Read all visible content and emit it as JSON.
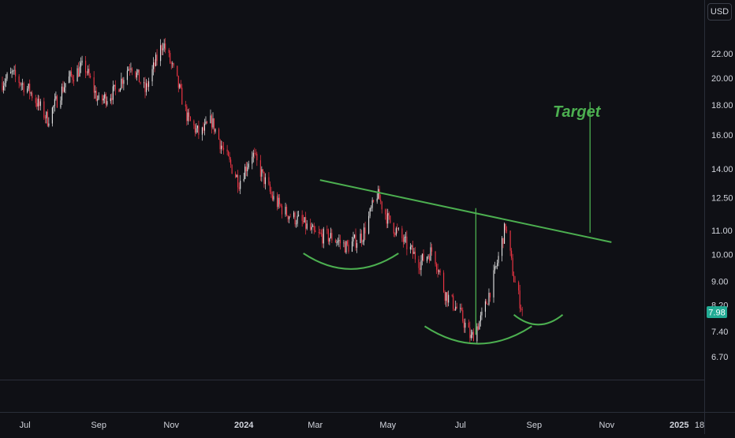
{
  "currency": "USD",
  "last_price_label": "7.98",
  "annotations": {
    "target_label": "Target"
  },
  "colors": {
    "background": "#0f1015",
    "up": "#e8e8e8",
    "down": "#f23645",
    "drawing": "#4caf50",
    "last_price_tag": "#22ab94",
    "axis_text": "#d1d4dc",
    "divider": "#2a2e39"
  },
  "chart_data": {
    "type": "candlestick",
    "title": "",
    "xlabel": "",
    "ylabel": "",
    "y_scale": "log",
    "ylim": [
      6.2,
      24.0
    ],
    "xlim": [
      "2023-06-10",
      "2025-01-22"
    ],
    "y_ticks": [
      22.0,
      20.0,
      18.0,
      16.0,
      14.0,
      12.5,
      11.0,
      10.0,
      9.0,
      8.2,
      7.4,
      6.7
    ],
    "y_tick_labels": [
      "22.00",
      "20.00",
      "18.00",
      "16.00",
      "14.00",
      "12.50",
      "11.00",
      "10.00",
      "9.00",
      "8.20",
      "7.40",
      "6.70"
    ],
    "x_ticks": [
      {
        "date": "2023-07-01",
        "label": "Jul"
      },
      {
        "date": "2023-09-01",
        "label": "Sep"
      },
      {
        "date": "2023-11-01",
        "label": "Nov"
      },
      {
        "date": "2024-01-01",
        "label": "2024"
      },
      {
        "date": "2024-03-01",
        "label": "Mar"
      },
      {
        "date": "2024-05-01",
        "label": "May"
      },
      {
        "date": "2024-07-01",
        "label": "Jul"
      },
      {
        "date": "2024-09-01",
        "label": "Sep"
      },
      {
        "date": "2024-11-01",
        "label": "Nov"
      },
      {
        "date": "2025-01-01",
        "label": "2025"
      },
      {
        "date": "2025-01-18",
        "label": "18"
      }
    ],
    "last_price": 7.98,
    "price_path": [
      {
        "date": "2023-06-10",
        "close": 19.5
      },
      {
        "date": "2023-06-20",
        "close": 20.3
      },
      {
        "date": "2023-07-05",
        "close": 19.0
      },
      {
        "date": "2023-07-20",
        "close": 17.0
      },
      {
        "date": "2023-08-05",
        "close": 19.8
      },
      {
        "date": "2023-08-20",
        "close": 21.0
      },
      {
        "date": "2023-09-01",
        "close": 18.2
      },
      {
        "date": "2023-09-15",
        "close": 19.0
      },
      {
        "date": "2023-09-28",
        "close": 21.2
      },
      {
        "date": "2023-10-10",
        "close": 19.0
      },
      {
        "date": "2023-10-25",
        "close": 23.0
      },
      {
        "date": "2023-11-05",
        "close": 20.0
      },
      {
        "date": "2023-11-15",
        "close": 17.0
      },
      {
        "date": "2023-11-25",
        "close": 16.0
      },
      {
        "date": "2023-12-05",
        "close": 16.9
      },
      {
        "date": "2023-12-15",
        "close": 15.0
      },
      {
        "date": "2023-12-28",
        "close": 13.3
      },
      {
        "date": "2024-01-08",
        "close": 14.9
      },
      {
        "date": "2024-01-25",
        "close": 12.5
      },
      {
        "date": "2024-02-05",
        "close": 11.8
      },
      {
        "date": "2024-02-20",
        "close": 11.3
      },
      {
        "date": "2024-03-01",
        "close": 10.8
      },
      {
        "date": "2024-03-15",
        "close": 10.7
      },
      {
        "date": "2024-03-28",
        "close": 10.3
      },
      {
        "date": "2024-04-10",
        "close": 10.8
      },
      {
        "date": "2024-04-22",
        "close": 12.7
      },
      {
        "date": "2024-05-01",
        "close": 11.5
      },
      {
        "date": "2024-05-15",
        "close": 10.5
      },
      {
        "date": "2024-05-28",
        "close": 9.7
      },
      {
        "date": "2024-06-08",
        "close": 10.2
      },
      {
        "date": "2024-06-18",
        "close": 8.6
      },
      {
        "date": "2024-06-30",
        "close": 8.0
      },
      {
        "date": "2024-07-10",
        "close": 7.2
      },
      {
        "date": "2024-07-20",
        "close": 7.9
      },
      {
        "date": "2024-07-30",
        "close": 9.3
      },
      {
        "date": "2024-08-08",
        "close": 11.2
      },
      {
        "date": "2024-08-15",
        "close": 9.1
      },
      {
        "date": "2024-08-23",
        "close": 7.9
      }
    ],
    "drawings": [
      {
        "name": "neckline",
        "type": "trendline",
        "points": [
          {
            "date": "2024-03-05",
            "price": 13.4
          },
          {
            "date": "2024-11-05",
            "price": 10.5
          }
        ]
      },
      {
        "name": "head-depth",
        "type": "vertical",
        "date": "2024-07-14",
        "price_from": 7.3,
        "price_to": 12.0
      },
      {
        "name": "target-measure",
        "type": "vertical",
        "date": "2024-10-18",
        "price_from": 10.9,
        "price_to": 18.2
      },
      {
        "name": "left-shoulder-arc",
        "type": "arc",
        "from": "2024-02-20",
        "to": "2024-05-10",
        "price_top": 10.05,
        "price_bottom": 9.45
      },
      {
        "name": "head-arc",
        "type": "arc",
        "from": "2024-06-01",
        "to": "2024-08-30",
        "price_top": 7.55,
        "price_bottom": 7.05
      },
      {
        "name": "right-shoulder-arc",
        "type": "arc",
        "from": "2024-08-15",
        "to": "2024-09-25",
        "price_top": 7.9,
        "price_bottom": 7.6
      }
    ]
  }
}
